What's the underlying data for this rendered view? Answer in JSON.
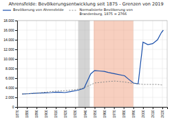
{
  "chart_data": {
    "type": "line",
    "title": "Ahrensfelde: Bevölkerungsentwicklung seit 1875 - Grenzen von 2019",
    "xlim": [
      1870,
      2025
    ],
    "xticks": [
      1870,
      1880,
      1890,
      1900,
      1910,
      1920,
      1930,
      1940,
      1950,
      1960,
      1970,
      1980,
      1990,
      2000,
      2010,
      2020
    ],
    "ylim": [
      0,
      18000
    ],
    "yticks": [
      0,
      {
        "value": 2000,
        "label": "2.000"
      },
      {
        "value": 4000,
        "label": "4.000"
      },
      {
        "value": 6000,
        "label": "6.000"
      },
      {
        "value": 8000,
        "label": "8.000"
      },
      {
        "value": 10000,
        "label": "10.000"
      },
      {
        "value": 12000,
        "label": "12.000"
      },
      {
        "value": 14000,
        "label": "14.000"
      },
      {
        "value": 16000,
        "label": "16.000"
      },
      {
        "value": 18000,
        "label": "18.000"
      }
    ],
    "grid": true,
    "legend": "upper left",
    "spans": [
      {
        "range": [
          1933,
          1945
        ],
        "color": "#aaaaaa"
      },
      {
        "range": [
          1949,
          1990
        ],
        "color": "#f0a080"
      }
    ],
    "series": [
      {
        "name": "Bevölkerung von Ahrensfelde",
        "color": "#1a4faa",
        "line_style": "solid",
        "x": [
          1875,
          1880,
          1885,
          1890,
          1895,
          1900,
          1905,
          1910,
          1916,
          1919,
          1925,
          1933,
          1939,
          1946,
          1950,
          1955,
          1960,
          1964,
          1971,
          1981,
          1985,
          1990,
          1995,
          2000,
          2005,
          2010,
          2015,
          2019,
          2021
        ],
        "values": [
          2700,
          2750,
          2800,
          2870,
          2900,
          2950,
          3000,
          3100,
          3050,
          3000,
          3200,
          3500,
          3900,
          6900,
          7600,
          7500,
          7400,
          7200,
          6900,
          6500,
          5800,
          5000,
          4800,
          13500,
          13000,
          13200,
          14000,
          15500,
          16000
        ]
      },
      {
        "name": "Normalisierte Bevölkerung von\nBrandenburg, 1875 = 2766",
        "color": "#888888",
        "line_style": "dashed",
        "x": [
          1875,
          1880,
          1890,
          1900,
          1910,
          1920,
          1925,
          1933,
          1939,
          1946,
          1950,
          1960,
          1964,
          1971,
          1981,
          1990,
          1995,
          2000,
          2005,
          2010,
          2015,
          2019,
          2021
        ],
        "values": [
          2700,
          2750,
          2900,
          3100,
          3300,
          3400,
          3500,
          3700,
          4000,
          4600,
          5000,
          5200,
          5300,
          5400,
          5200,
          4900,
          4800,
          4700,
          4700,
          4700,
          4700,
          4600,
          4600
        ]
      }
    ]
  }
}
